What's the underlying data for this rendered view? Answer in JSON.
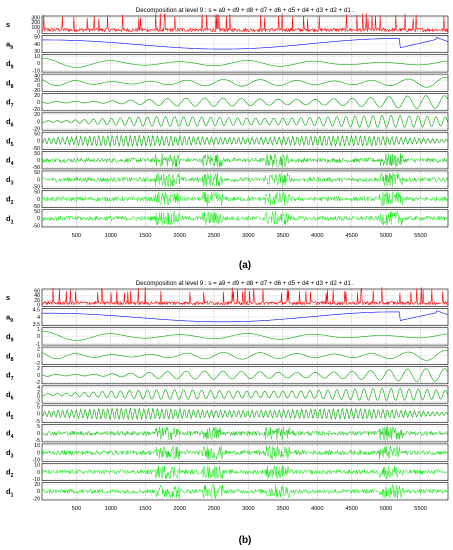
{
  "chart_data": [
    {
      "type": "line",
      "caption": "(a)",
      "title": "Decomposition at level 9 : s = a9 + d9 + d8 + d7 + d6 + d5 + d4 + d3 + d2 + d1 .",
      "xlim": [
        0,
        5900
      ],
      "x_ticks": [
        "500",
        "1000",
        "1500",
        "2000",
        "2500",
        "3000",
        "3500",
        "4000",
        "4500",
        "5000",
        "5500"
      ],
      "grid": true,
      "rows": [
        {
          "label": "s",
          "sub": "",
          "color": "#ff0000",
          "ticks": [
            "300",
            "200",
            "100",
            "0"
          ],
          "kind": "spiky",
          "freq": 0,
          "amp": 0.95
        },
        {
          "label": "a",
          "sub": "9",
          "color": "#0000ff",
          "ticks": [
            "50",
            "40",
            "30"
          ],
          "kind": "approx",
          "freq": 0,
          "amp": 0.9
        },
        {
          "label": "d",
          "sub": "9",
          "color": "#00aa00",
          "ticks": [
            "10",
            "0",
            "-10"
          ],
          "kind": "wave",
          "freq": 6,
          "amp": 0.6
        },
        {
          "label": "d",
          "sub": "8",
          "color": "#00aa00",
          "ticks": [
            "40",
            "20",
            "0",
            "-20"
          ],
          "kind": "wave",
          "freq": 11,
          "amp": 0.7
        },
        {
          "label": "d",
          "sub": "7",
          "color": "#00aa00",
          "ticks": [
            "20",
            "0",
            "-20"
          ],
          "kind": "wave",
          "freq": 22,
          "amp": 0.75
        },
        {
          "label": "d",
          "sub": "6",
          "color": "#00aa00",
          "ticks": [
            "20",
            "0",
            "-20"
          ],
          "kind": "wave",
          "freq": 45,
          "amp": 0.75
        },
        {
          "label": "d",
          "sub": "5",
          "color": "#00aa00",
          "ticks": [
            "50",
            "0",
            "-50"
          ],
          "kind": "wave",
          "freq": 90,
          "amp": 0.75
        },
        {
          "label": "d",
          "sub": "4",
          "color": "#00cc00",
          "ticks": [
            "50",
            "0",
            "-50"
          ],
          "kind": "noise",
          "freq": 0,
          "amp": 0.8
        },
        {
          "label": "d",
          "sub": "3",
          "color": "#00dd00",
          "ticks": [
            "50",
            "0",
            "-50"
          ],
          "kind": "noise",
          "freq": 0,
          "amp": 0.8
        },
        {
          "label": "d",
          "sub": "2",
          "color": "#00ee00",
          "ticks": [
            "50",
            "0",
            "-50"
          ],
          "kind": "noise",
          "freq": 0,
          "amp": 0.8
        },
        {
          "label": "d",
          "sub": "1",
          "color": "#00ee00",
          "ticks": [
            "50",
            "0",
            "-50"
          ],
          "kind": "noise",
          "freq": 0,
          "amp": 0.8
        }
      ]
    },
    {
      "type": "line",
      "caption": "(b)",
      "title": "Decomposition at level 9 : s = a9 + d9 + d8 + d7 + d6 + d5 + d4 + d3 + d2 + d1 .",
      "xlim": [
        0,
        5900
      ],
      "x_ticks": [
        "500",
        "1000",
        "1500",
        "2000",
        "2500",
        "3000",
        "3500",
        "4000",
        "4500",
        "5000",
        "5500"
      ],
      "grid": true,
      "rows": [
        {
          "label": "s",
          "sub": "",
          "color": "#ff0000",
          "ticks": [
            "60",
            "40",
            "20",
            "0"
          ],
          "kind": "spiky",
          "freq": 0,
          "amp": 0.9
        },
        {
          "label": "a",
          "sub": "9",
          "color": "#0000ff",
          "ticks": [
            "4.5",
            "4",
            "3.5"
          ],
          "kind": "approx",
          "freq": 0,
          "amp": 0.85
        },
        {
          "label": "d",
          "sub": "9",
          "color": "#00aa00",
          "ticks": [
            "1",
            "0",
            "-1"
          ],
          "kind": "wave",
          "freq": 6,
          "amp": 0.6
        },
        {
          "label": "d",
          "sub": "8",
          "color": "#00aa00",
          "ticks": [
            "2",
            "0",
            "-2"
          ],
          "kind": "wave",
          "freq": 11,
          "amp": 0.7
        },
        {
          "label": "d",
          "sub": "7",
          "color": "#00aa00",
          "ticks": [
            "2",
            "0",
            "-2"
          ],
          "kind": "wave",
          "freq": 22,
          "amp": 0.75
        },
        {
          "label": "d",
          "sub": "6",
          "color": "#00aa00",
          "ticks": [
            "4",
            "2",
            "0",
            "-2"
          ],
          "kind": "wave",
          "freq": 45,
          "amp": 0.75
        },
        {
          "label": "d",
          "sub": "5",
          "color": "#00aa00",
          "ticks": [
            "5",
            "0",
            "-5"
          ],
          "kind": "wave",
          "freq": 90,
          "amp": 0.75
        },
        {
          "label": "d",
          "sub": "4",
          "color": "#00cc00",
          "ticks": [
            "5",
            "0",
            "-5"
          ],
          "kind": "noise",
          "freq": 0,
          "amp": 0.8
        },
        {
          "label": "d",
          "sub": "3",
          "color": "#00dd00",
          "ticks": [
            "10",
            "0",
            "-10"
          ],
          "kind": "noise",
          "freq": 0,
          "amp": 0.8
        },
        {
          "label": "d",
          "sub": "2",
          "color": "#00ee00",
          "ticks": [
            "10",
            "0",
            "-10"
          ],
          "kind": "noise",
          "freq": 0,
          "amp": 0.8
        },
        {
          "label": "d",
          "sub": "1",
          "color": "#00ee00",
          "ticks": [
            "20",
            "0",
            "-20"
          ],
          "kind": "noise",
          "freq": 0,
          "amp": 0.8
        }
      ]
    }
  ]
}
